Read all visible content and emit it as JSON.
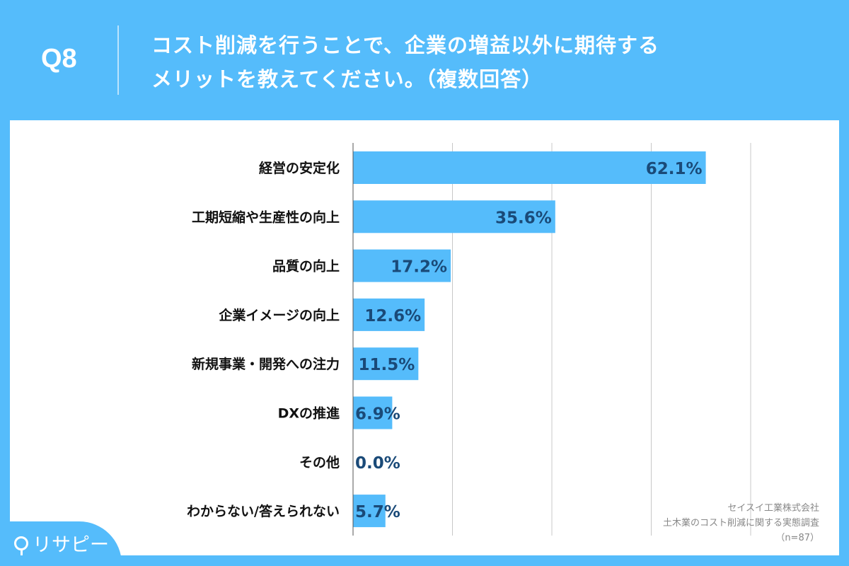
{
  "header": {
    "question_number": "Q8",
    "title_line1": "コスト削減を行うことで、企業の増益以外に期待する",
    "title_line2": "メリットを教えてください。（複数回答）"
  },
  "source": {
    "company": "セイスイ工業株式会社",
    "survey": "土木業のコスト削減に関する実態調査",
    "sample": "（n=87）"
  },
  "logo": {
    "text": "リサピー"
  },
  "colors": {
    "bar": "#55bcfb",
    "label": "#1a4a78",
    "background": "#55bcfb"
  },
  "chart_data": {
    "type": "bar",
    "orientation": "horizontal",
    "categories": [
      "経営の安定化",
      "工期短縮や生産性の向上",
      "品質の向上",
      "企業イメージの向上",
      "新規事業・開発への注力",
      "DXの推進",
      "その他",
      "わからない/答えられない"
    ],
    "values": [
      62.1,
      35.6,
      17.2,
      12.6,
      11.5,
      6.9,
      0.0,
      5.7
    ],
    "value_labels": [
      "62.1%",
      "35.6%",
      "17.2%",
      "12.6%",
      "11.5%",
      "6.9%",
      "0.0%",
      "5.7%"
    ],
    "xlim": [
      0,
      70
    ],
    "grid": true,
    "title": "",
    "xlabel": "",
    "ylabel": ""
  }
}
